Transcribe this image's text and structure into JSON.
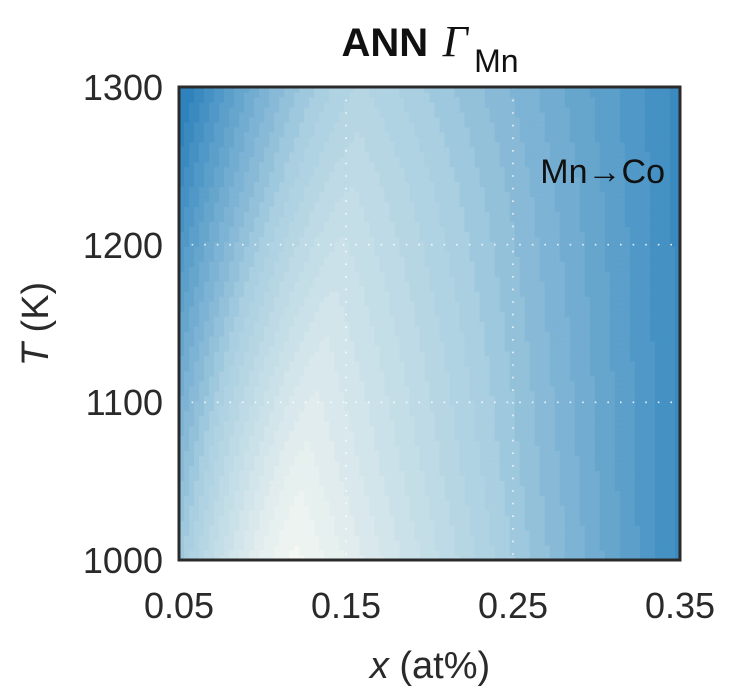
{
  "chart_data": {
    "type": "heatmap",
    "title": {
      "prefix": "ANN",
      "symbol": "Γ",
      "subscript": "Mn"
    },
    "xlabel": {
      "var": "x",
      "unit": " (at%)"
    },
    "ylabel": {
      "var": "T",
      "unit": " (K)"
    },
    "xlim": [
      0.05,
      0.35
    ],
    "ylim": [
      1000,
      1300
    ],
    "xticks": [
      "0.05",
      "0.15",
      "0.25",
      "0.35"
    ],
    "yticks": [
      "1000",
      "1100",
      "1200",
      "1300"
    ],
    "grid": true,
    "annotation": "Mn→Co",
    "colormap": {
      "low": "#f4f7f2",
      "mid": "#a9cfe1",
      "high": "#2f83bd"
    },
    "ridge": {
      "x": [
        0.12,
        0.125,
        0.135,
        0.145,
        0.155,
        0.16
      ],
      "y": [
        1000,
        1060,
        1120,
        1180,
        1240,
        1300
      ]
    }
  }
}
